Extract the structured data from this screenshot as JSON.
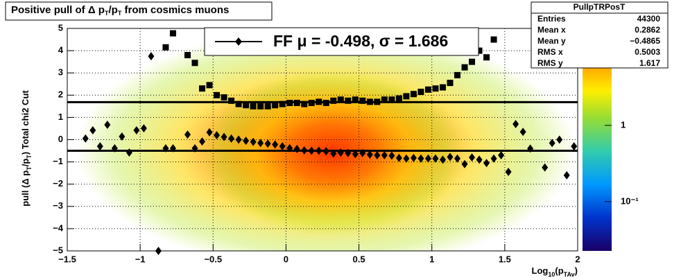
{
  "chart_data": {
    "type": "profile2d",
    "title": [
      "Positive pull of Δ p",
      "T",
      "/p",
      "T",
      " from cosmics muons"
    ],
    "y_label": [
      "pull (Δ p",
      "T",
      "/p",
      "T",
      ")  Total chi2 Cut"
    ],
    "x_label": [
      "Log",
      "10",
      "(p",
      "TAv",
      ")"
    ],
    "xlim": [
      -1.5,
      2
    ],
    "xticks": [
      {
        "value": -1.5,
        "label": "−1.5"
      },
      {
        "value": -1,
        "label": "−1"
      },
      {
        "value": -0.5,
        "label": "−0.5"
      },
      0,
      0.5,
      1,
      1.5,
      2
    ],
    "ylim": [
      -5,
      5
    ],
    "yticks": [
      {
        "value": -5,
        "label": "−5"
      },
      {
        "value": -4,
        "label": "−4"
      },
      {
        "value": -3,
        "label": "−3"
      },
      {
        "value": -2,
        "label": "−2"
      },
      {
        "value": -1,
        "label": "−1"
      },
      0,
      1,
      2,
      3,
      4,
      5
    ],
    "grid": true,
    "zlim": [
      0.0226,
      18.7
    ],
    "zlog": true,
    "zticks": [
      1,
      {
        "value": 0.1,
        "label": "10⁻¹"
      }
    ],
    "x": [
      -1.375,
      -1.325,
      -1.275,
      -1.225,
      -1.175,
      -1.125,
      -1.075,
      -1.025,
      -0.975,
      -0.925,
      -0.875,
      -0.825,
      -0.775,
      -0.725,
      -0.675,
      -0.625,
      -0.575,
      -0.525,
      -0.475,
      -0.425,
      -0.375,
      -0.325,
      -0.275,
      -0.225,
      -0.175,
      -0.125,
      -0.075,
      -0.025,
      0.025,
      0.075,
      0.125,
      0.175,
      0.225,
      0.275,
      0.325,
      0.375,
      0.425,
      0.475,
      0.525,
      0.575,
      0.625,
      0.675,
      0.725,
      0.775,
      0.825,
      0.875,
      0.925,
      0.975,
      1.025,
      1.075,
      1.125,
      1.175,
      1.225,
      1.275,
      1.325,
      1.375,
      1.425,
      1.475,
      1.525,
      1.575,
      1.625,
      1.675,
      1.725,
      1.775,
      1.825,
      1.875,
      1.925,
      1.975
    ],
    "series": [
      {
        "marker": "diamond",
        "color": "#000000",
        "values": [
          0.05,
          0.42,
          -0.3,
          0.67,
          -0.39,
          0.14,
          -0.58,
          0.42,
          0.51,
          3.75,
          -5,
          -0.39,
          -0.39,
          null,
          0.23,
          -0.39,
          -0.08,
          0.33,
          0.2,
          0.12,
          0.05,
          0.0,
          -0.05,
          -0.1,
          -0.15,
          -0.18,
          -0.22,
          -0.3,
          -0.38,
          -0.42,
          -0.48,
          -0.5,
          -0.5,
          -0.52,
          -0.62,
          -0.58,
          -0.6,
          -0.65,
          -0.6,
          -0.67,
          -0.7,
          -0.7,
          -0.72,
          -0.82,
          -0.85,
          -0.82,
          -0.85,
          -0.85,
          -0.85,
          -0.9,
          -0.78,
          -0.85,
          -1.1,
          -0.8,
          -0.9,
          -1.05,
          -0.85,
          -0.7,
          -1.45,
          0.7,
          0.35,
          -0.4,
          null,
          -1.25,
          -0.15,
          0.0,
          -1.6,
          -0.3
        ]
      },
      {
        "marker": "square",
        "color": "#000000",
        "values": [
          null,
          null,
          null,
          null,
          null,
          null,
          null,
          null,
          null,
          null,
          null,
          4.15,
          4.78,
          null,
          3.8,
          3.45,
          2.3,
          2.45,
          2.0,
          1.9,
          1.75,
          1.6,
          1.55,
          1.5,
          1.5,
          1.5,
          1.55,
          1.6,
          1.65,
          1.65,
          1.6,
          1.65,
          1.7,
          1.65,
          1.75,
          1.8,
          1.75,
          1.8,
          1.75,
          1.7,
          1.7,
          1.8,
          1.8,
          1.85,
          1.95,
          2.05,
          2.15,
          2.25,
          2.3,
          2.35,
          2.55,
          2.9,
          3.25,
          3.5,
          4.0,
          3.7,
          4.5,
          null,
          null,
          null,
          null,
          null,
          null,
          null,
          null,
          null,
          null,
          null
        ]
      }
    ],
    "hlines": [
      -0.498,
      1.686
    ],
    "legend": "FF μ = -0.498, σ =   1.686",
    "stats": {
      "title": "PullpTRPosT",
      "rows": [
        [
          "Entries",
          "44300"
        ],
        [
          "Mean x",
          "0.2862"
        ],
        [
          "Mean y",
          "−0.4865"
        ],
        [
          "RMS x",
          "0.5003"
        ],
        [
          "RMS y",
          "1.617"
        ]
      ]
    }
  }
}
